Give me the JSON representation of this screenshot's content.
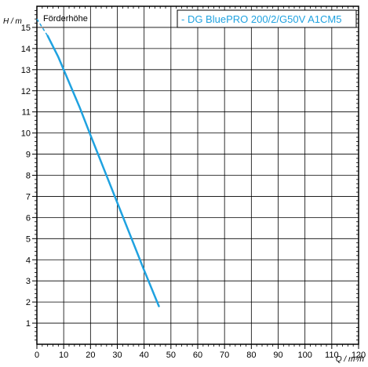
{
  "chart_data": {
    "type": "line",
    "panel_label": "Förderhöhe",
    "y_axis_title": "H / m",
    "x_axis_title": "Q / m³/h",
    "x_ticks": [
      0,
      10,
      20,
      30,
      40,
      50,
      60,
      70,
      80,
      90,
      100,
      110,
      120
    ],
    "y_ticks": [
      1,
      2,
      3,
      4,
      5,
      6,
      7,
      8,
      9,
      10,
      11,
      12,
      13,
      14,
      15
    ],
    "xlim": [
      0,
      120
    ],
    "ylim": [
      0,
      16
    ],
    "grid": true,
    "legend_position": "top-right",
    "series": [
      {
        "name": "- DG BluePRO 200/2/G50V A1CM5",
        "color": "#1fa2e0",
        "x": [
          0,
          4,
          8,
          12,
          16,
          20,
          25,
          30,
          35,
          40,
          45.5
        ],
        "y": [
          15.4,
          14.6,
          13.6,
          12.4,
          11.2,
          9.9,
          8.3,
          6.7,
          5.1,
          3.5,
          1.8
        ]
      }
    ]
  }
}
